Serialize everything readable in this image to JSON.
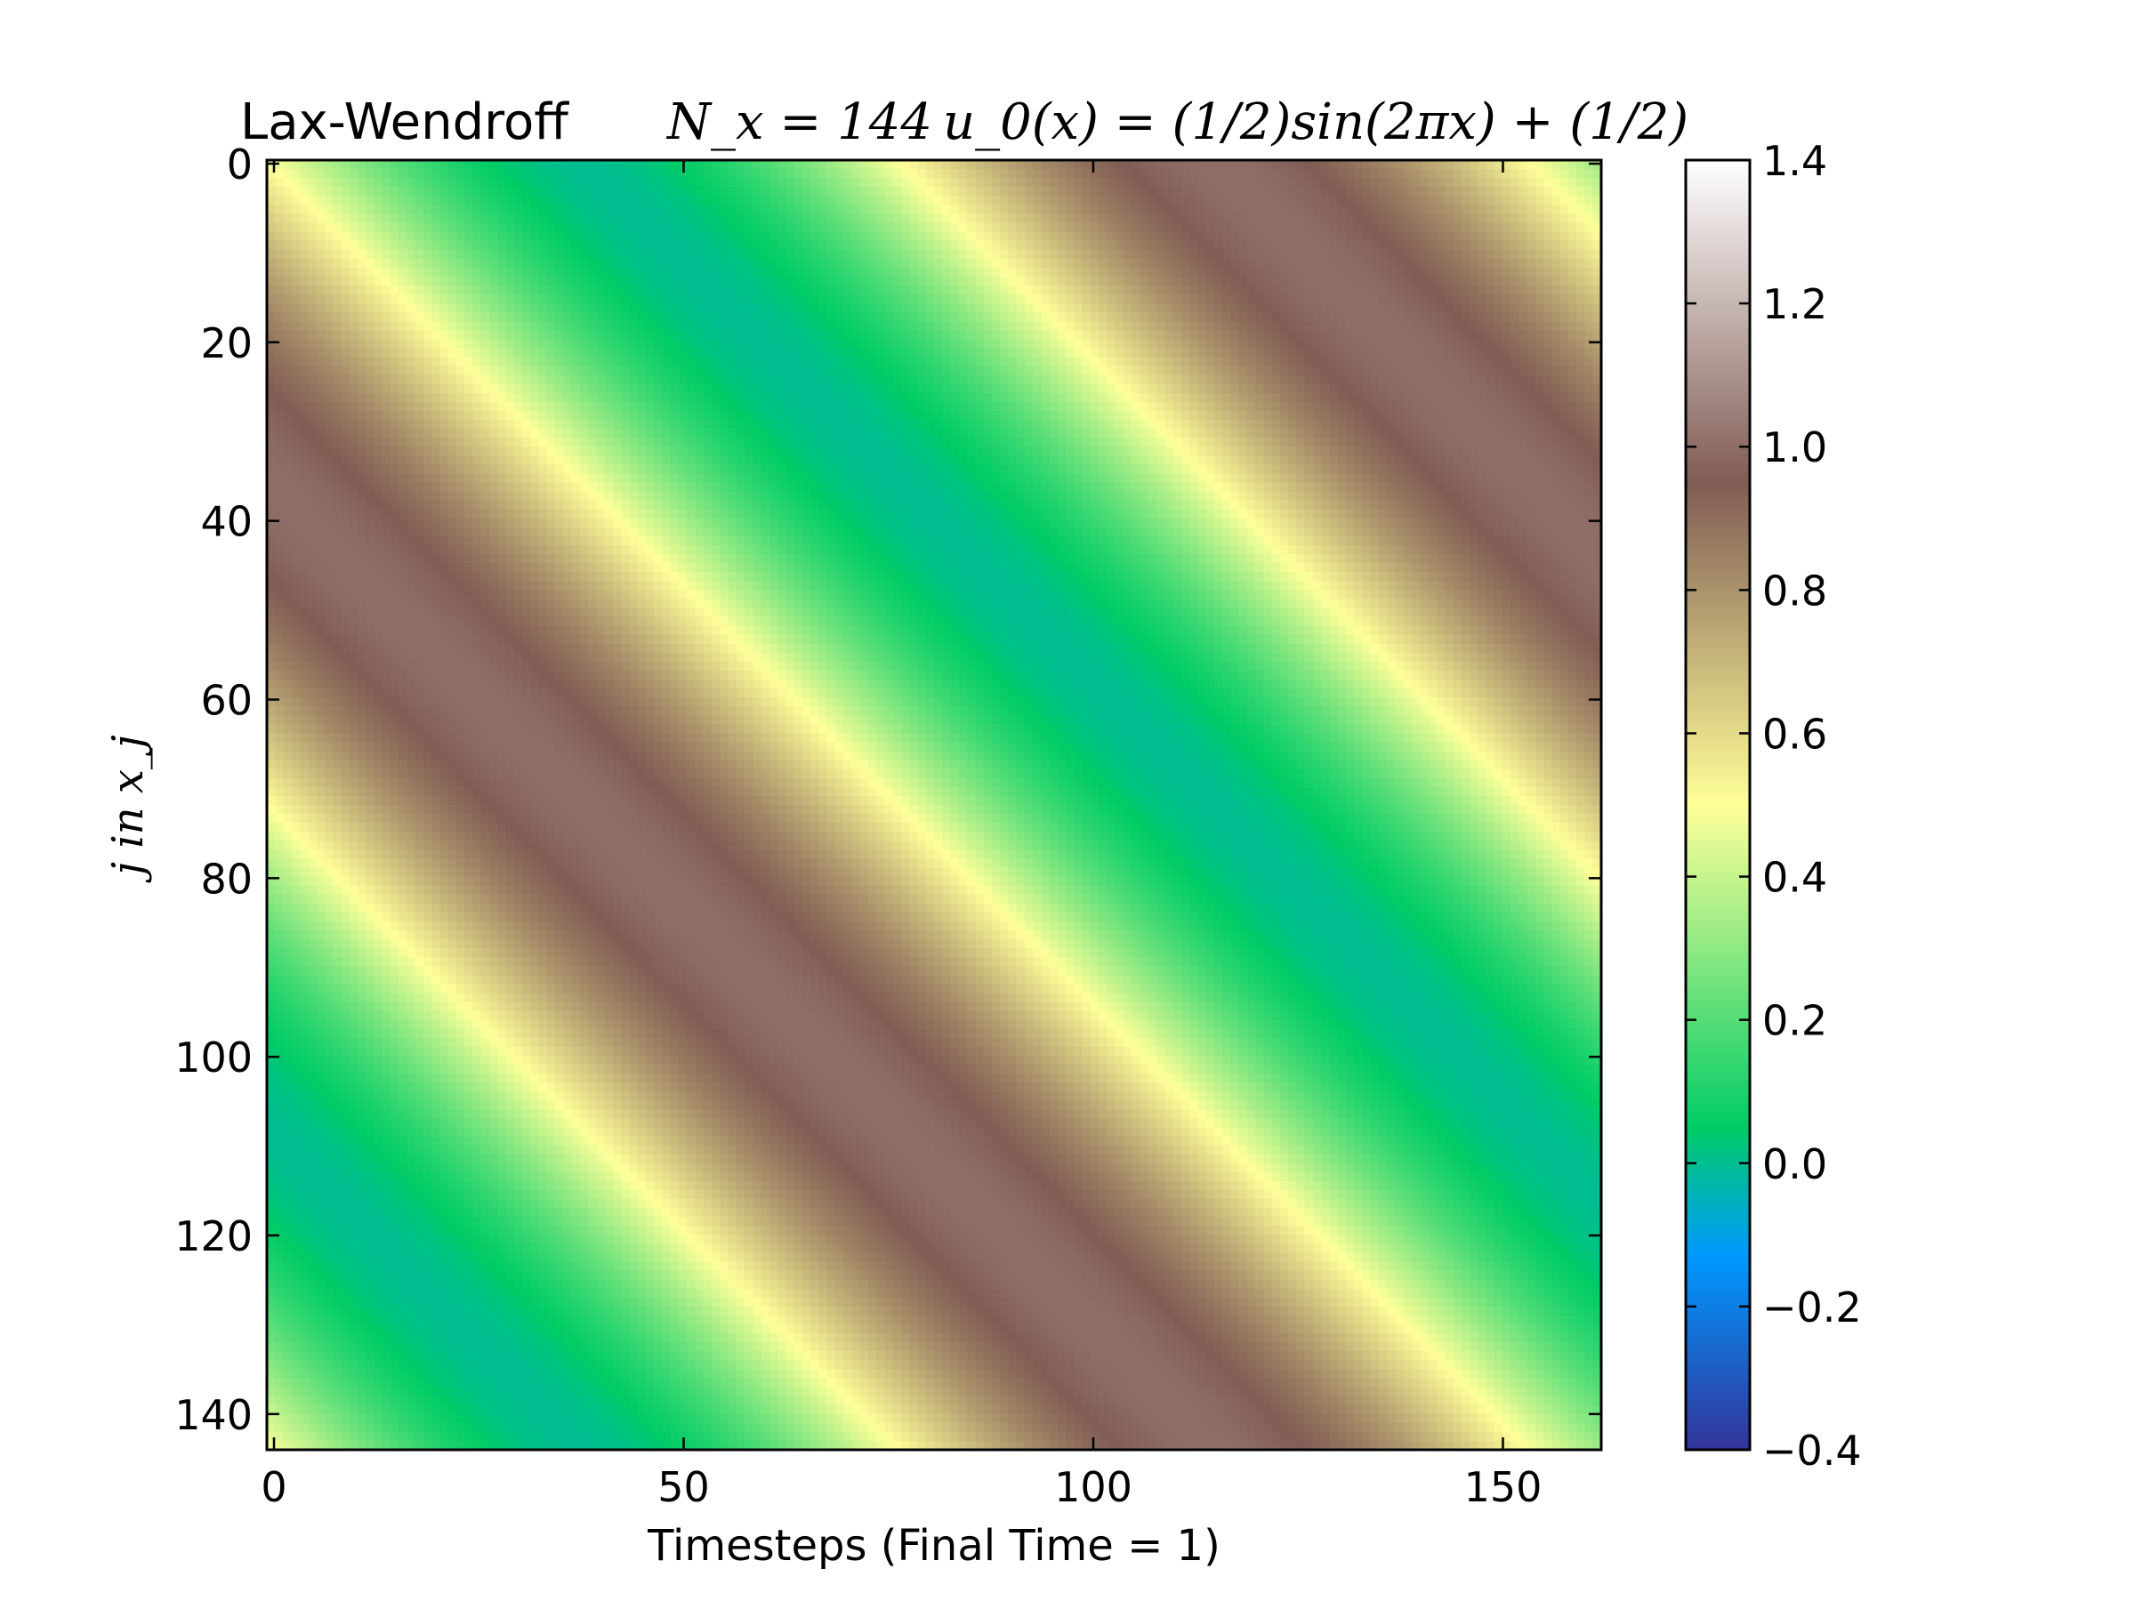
{
  "chart_data": {
    "type": "heatmap",
    "title": {
      "method": "Lax-Wendroff",
      "grid": "N_x = 144",
      "initial_condition": "u_0(x) = (1/2)sin(2πx) + (1/2)"
    },
    "xlabel": "Timesteps (Final Time = 1)",
    "ylabel": "j in x_j",
    "xlim": [
      0,
      162
    ],
    "ylim": [
      144,
      0
    ],
    "x_ticks": [
      0,
      50,
      100,
      150
    ],
    "y_ticks": [
      0,
      20,
      40,
      60,
      80,
      100,
      120,
      140
    ],
    "nx": 144,
    "n_timesteps": 162,
    "final_time": 1,
    "colormap": "terrain",
    "colorbar": {
      "vmin": -0.4,
      "vmax": 1.4,
      "ticks": [
        "−0.4",
        "−0.2",
        "0.0",
        "0.2",
        "0.4",
        "0.6",
        "0.8",
        "1.0",
        "1.2",
        "1.4"
      ],
      "tick_values": [
        -0.4,
        -0.2,
        0.0,
        0.2,
        0.4,
        0.6,
        0.8,
        1.0,
        1.2,
        1.4
      ]
    },
    "field": {
      "formula": "u = 0.5*sin(2π(x_j − c·t)) + 0.5",
      "value_range": [
        0,
        1
      ],
      "band_slope_rows_per_timestep": 0.94
    },
    "grid": false,
    "colors": {
      "terrain_stops": [
        {
          "v": 0.0,
          "c": "#333399"
        },
        {
          "v": 0.15,
          "c": "#0099ff"
        },
        {
          "v": 0.25,
          "c": "#00cc66"
        },
        {
          "v": 0.5,
          "c": "#ffff99"
        },
        {
          "v": 0.75,
          "c": "#805c54"
        },
        {
          "v": 1.0,
          "c": "#ffffff"
        }
      ]
    }
  }
}
